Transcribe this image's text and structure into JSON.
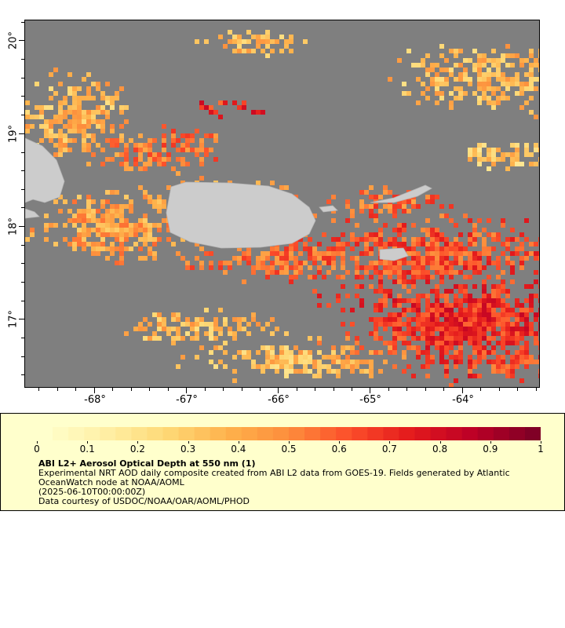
{
  "map": {
    "lat_labels": [
      "20°",
      "19°",
      "18°",
      "17°"
    ],
    "lon_labels": [
      "-68°",
      "-67°",
      "-66°",
      "-65°",
      "-64°"
    ],
    "land_color": "#cccccc",
    "nodata_color": "#7f7f7f"
  },
  "legend": {
    "title": "ABI L2+ Aerosol Optical Depth at 550 nm (1)",
    "description": "Experimental NRT AOD daily composite created from ABI L2 data from GOES-19. Fields generated by Atlantic OceanWatch node at NOAA/AOML",
    "date": "(2025-06-10T00:00:00Z)",
    "credit": "Data courtesy of USDOC/NOAA/OAR/AOML/PHOD",
    "scale_labels": [
      "0",
      "0.1",
      "0.2",
      "0.3",
      "0.4",
      "0.5",
      "0.6",
      "0.7",
      "0.8",
      "0.9",
      "1"
    ],
    "scale_min": 0,
    "scale_max": 1,
    "colors": [
      "#ffffcc",
      "#ffefa5",
      "#fed976",
      "#feb24c",
      "#fd8d3c",
      "#fc4e2a",
      "#e31a1c",
      "#bd0026",
      "#800026"
    ]
  }
}
